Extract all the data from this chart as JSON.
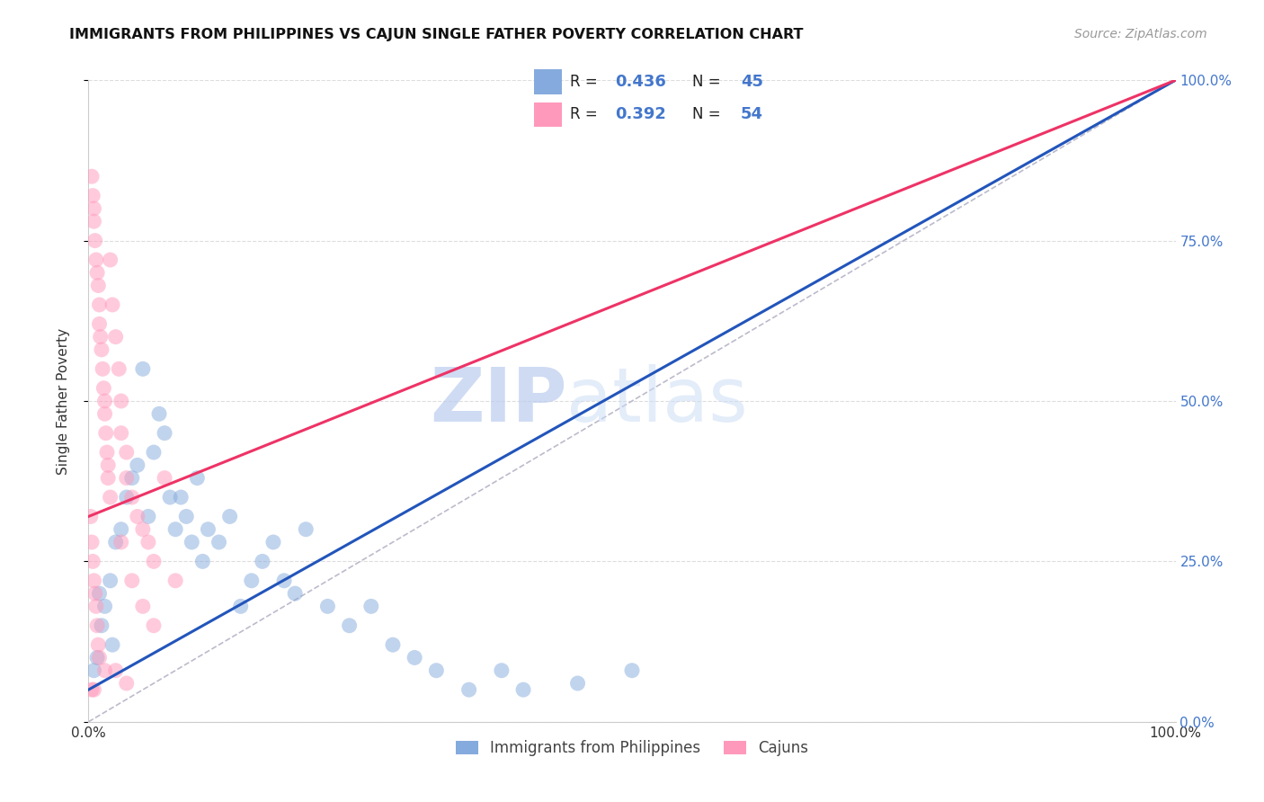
{
  "title": "IMMIGRANTS FROM PHILIPPINES VS CAJUN SINGLE FATHER POVERTY CORRELATION CHART",
  "source": "Source: ZipAtlas.com",
  "ylabel": "Single Father Poverty",
  "legend_label1": "Immigrants from Philippines",
  "legend_label2": "Cajuns",
  "r1": 0.436,
  "n1": 45,
  "r2": 0.392,
  "n2": 54,
  "watermark_zip": "ZIP",
  "watermark_atlas": "atlas",
  "blue_color": "#85AADD",
  "pink_color": "#FF99BB",
  "blue_line_color": "#2255BB",
  "pink_line_color": "#EE3366",
  "xmin": 0.0,
  "xmax": 100.0,
  "ymin": 0.0,
  "ymax": 100.0,
  "ytick_labels": [
    "0.0%",
    "25.0%",
    "50.0%",
    "75.0%",
    "100.0%"
  ],
  "ytick_values": [
    0,
    25,
    50,
    75,
    100
  ],
  "blue_line": [
    [
      0,
      5
    ],
    [
      100,
      100
    ]
  ],
  "pink_line": [
    [
      0,
      32
    ],
    [
      100,
      100
    ]
  ],
  "blue_points": [
    [
      1.0,
      20
    ],
    [
      1.2,
      15
    ],
    [
      1.5,
      18
    ],
    [
      2.0,
      22
    ],
    [
      2.5,
      28
    ],
    [
      3.0,
      30
    ],
    [
      3.5,
      35
    ],
    [
      4.0,
      38
    ],
    [
      4.5,
      40
    ],
    [
      5.0,
      55
    ],
    [
      5.5,
      32
    ],
    [
      6.0,
      42
    ],
    [
      6.5,
      48
    ],
    [
      7.0,
      45
    ],
    [
      7.5,
      35
    ],
    [
      8.0,
      30
    ],
    [
      8.5,
      35
    ],
    [
      9.0,
      32
    ],
    [
      9.5,
      28
    ],
    [
      10.0,
      38
    ],
    [
      10.5,
      25
    ],
    [
      11.0,
      30
    ],
    [
      12.0,
      28
    ],
    [
      13.0,
      32
    ],
    [
      14.0,
      18
    ],
    [
      15.0,
      22
    ],
    [
      16.0,
      25
    ],
    [
      17.0,
      28
    ],
    [
      18.0,
      22
    ],
    [
      19.0,
      20
    ],
    [
      20.0,
      30
    ],
    [
      22.0,
      18
    ],
    [
      24.0,
      15
    ],
    [
      26.0,
      18
    ],
    [
      28.0,
      12
    ],
    [
      30.0,
      10
    ],
    [
      32.0,
      8
    ],
    [
      35.0,
      5
    ],
    [
      38.0,
      8
    ],
    [
      40.0,
      5
    ],
    [
      45.0,
      6
    ],
    [
      50.0,
      8
    ],
    [
      0.5,
      8
    ],
    [
      0.8,
      10
    ],
    [
      2.2,
      12
    ]
  ],
  "pink_points": [
    [
      0.3,
      85
    ],
    [
      0.4,
      82
    ],
    [
      0.5,
      80
    ],
    [
      0.5,
      78
    ],
    [
      0.6,
      75
    ],
    [
      0.7,
      72
    ],
    [
      0.8,
      70
    ],
    [
      0.9,
      68
    ],
    [
      1.0,
      65
    ],
    [
      1.0,
      62
    ],
    [
      1.1,
      60
    ],
    [
      1.2,
      58
    ],
    [
      1.3,
      55
    ],
    [
      1.4,
      52
    ],
    [
      1.5,
      50
    ],
    [
      1.5,
      48
    ],
    [
      1.6,
      45
    ],
    [
      1.7,
      42
    ],
    [
      1.8,
      40
    ],
    [
      1.8,
      38
    ],
    [
      2.0,
      72
    ],
    [
      2.2,
      65
    ],
    [
      2.5,
      60
    ],
    [
      2.8,
      55
    ],
    [
      3.0,
      50
    ],
    [
      3.0,
      45
    ],
    [
      3.5,
      42
    ],
    [
      3.5,
      38
    ],
    [
      4.0,
      35
    ],
    [
      4.5,
      32
    ],
    [
      5.0,
      30
    ],
    [
      5.5,
      28
    ],
    [
      6.0,
      25
    ],
    [
      7.0,
      38
    ],
    [
      8.0,
      22
    ],
    [
      0.2,
      32
    ],
    [
      0.3,
      28
    ],
    [
      0.4,
      25
    ],
    [
      0.5,
      22
    ],
    [
      0.6,
      20
    ],
    [
      0.7,
      18
    ],
    [
      0.8,
      15
    ],
    [
      0.9,
      12
    ],
    [
      1.0,
      10
    ],
    [
      2.0,
      35
    ],
    [
      3.0,
      28
    ],
    [
      4.0,
      22
    ],
    [
      5.0,
      18
    ],
    [
      6.0,
      15
    ],
    [
      1.5,
      8
    ],
    [
      0.3,
      5
    ],
    [
      0.5,
      5
    ],
    [
      2.5,
      8
    ],
    [
      3.5,
      6
    ]
  ],
  "grid_color": "#DDDDDD",
  "title_color": "#111111",
  "source_color": "#999999",
  "axis_color": "#CCCCCC",
  "tick_label_color_right": "#4477CC"
}
